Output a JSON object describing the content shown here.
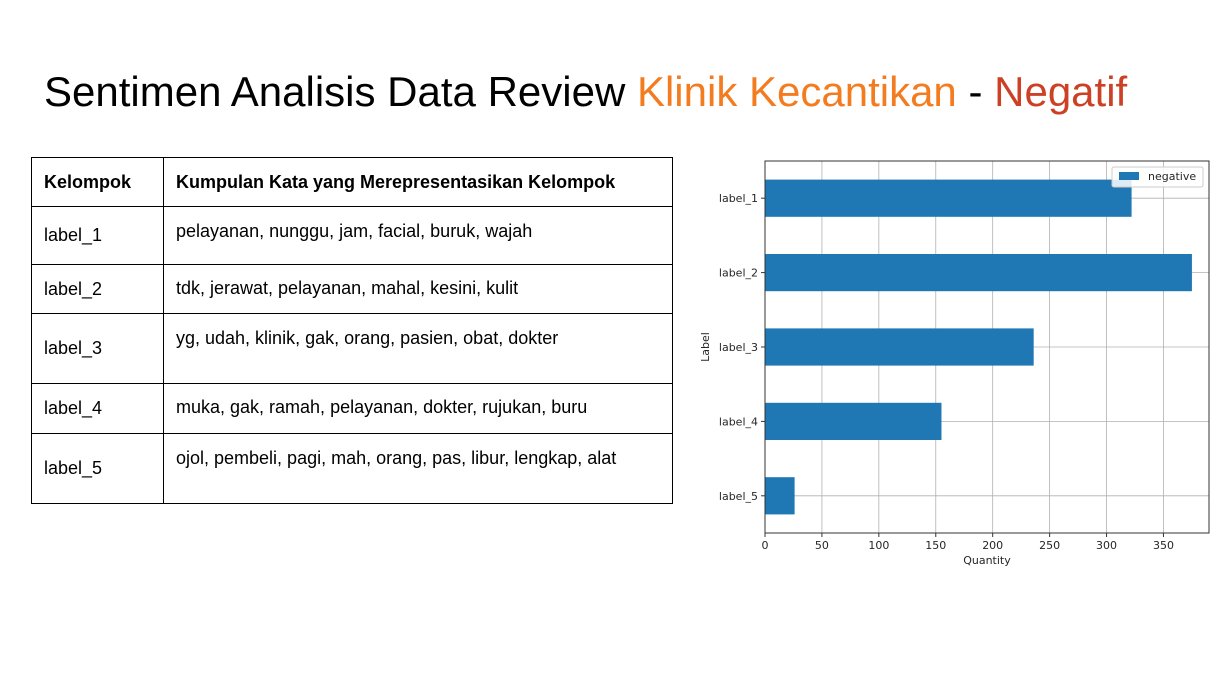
{
  "title": {
    "part1": "Sentimen Analisis Data Review ",
    "part2": "Klinik Kecantikan",
    "part3": " - ",
    "part4": "Negatif",
    "colors": {
      "base": "#000000",
      "orange": "#f47c20",
      "red": "#cc4125"
    }
  },
  "table": {
    "headers": [
      "Kelompok",
      "Kumpulan Kata yang Merepresentasikan Kelompok"
    ],
    "rows": [
      {
        "group": "label_1",
        "words": "pelayanan, nunggu, jam, facial, buruk, wajah"
      },
      {
        "group": "label_2",
        "words": "tdk, jerawat, pelayanan, mahal, kesini, kulit"
      },
      {
        "group": "label_3",
        "words": "yg, udah, klinik, gak, orang, pasien, obat, dokter"
      },
      {
        "group": "label_4",
        "words": "muka, gak, ramah, pelayanan, dokter, rujukan, buru"
      },
      {
        "group": "label_5",
        "words": "ojol, pembeli, pagi, mah, orang, pas, libur, lengkap, alat"
      }
    ]
  },
  "chart_data": {
    "type": "bar",
    "orientation": "horizontal",
    "categories": [
      "label_1",
      "label_2",
      "label_3",
      "label_4",
      "label_5"
    ],
    "series": [
      {
        "name": "negative",
        "values": [
          322,
          375,
          236,
          155,
          26
        ],
        "color": "#1f77b4"
      }
    ],
    "xlabel": "Quantity",
    "ylabel": "Label",
    "xlim": [
      0,
      390
    ],
    "xticks": [
      0,
      50,
      100,
      150,
      200,
      250,
      300,
      350
    ],
    "grid": true,
    "legend": "top-right"
  }
}
